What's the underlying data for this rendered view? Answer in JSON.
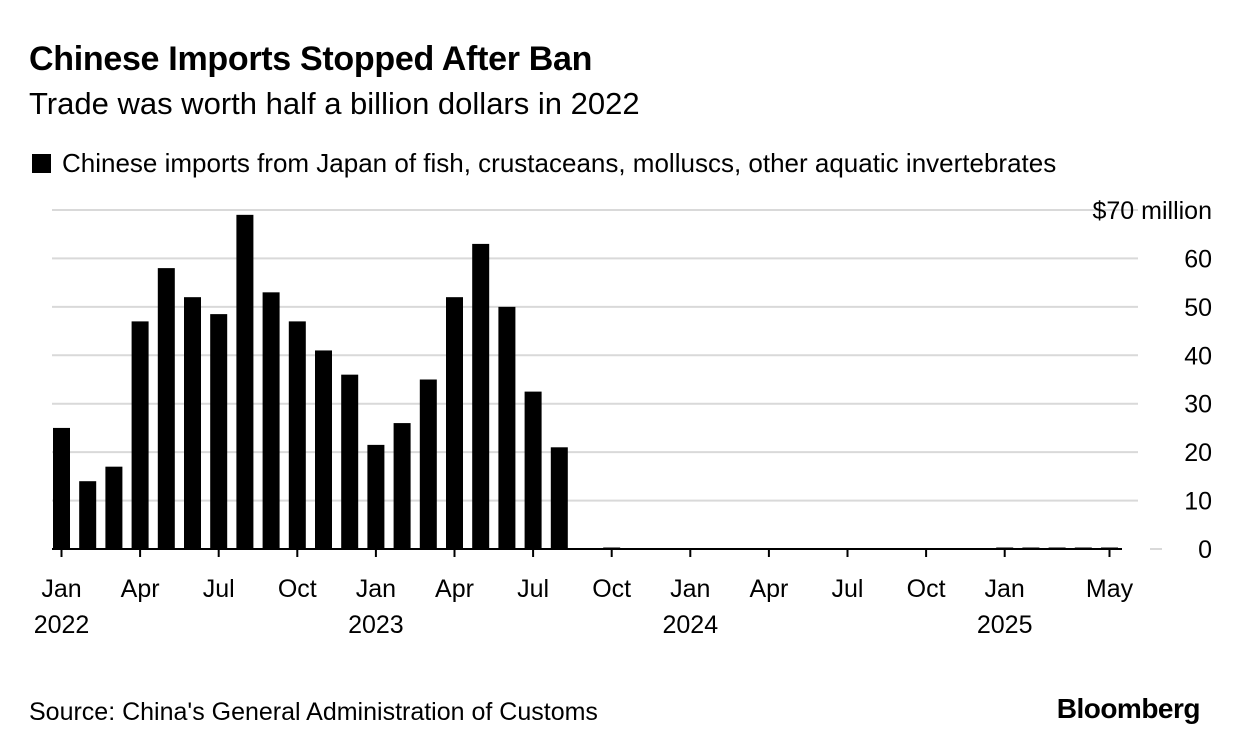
{
  "header": {
    "title": "Chinese Imports Stopped After Ban",
    "subtitle": "Trade was worth half a billion dollars in 2022"
  },
  "legend": {
    "label": "Chinese imports from Japan of fish, crustaceans, molluscs, other aquatic invertebrates"
  },
  "footer": {
    "source": "Source: China's General Administration of Customs",
    "brand": "Bloomberg"
  },
  "colors": {
    "bar": "#000000",
    "grid": "#d9d9d9",
    "text": "#000000",
    "background": "#ffffff"
  },
  "chart_data": {
    "type": "bar",
    "title": "Chinese Imports Stopped After Ban",
    "subtitle": "Trade was worth half a billion dollars in 2022",
    "xlabel": "",
    "ylabel": "$ million",
    "ylim": [
      0,
      70
    ],
    "grid": true,
    "y_axis_position": "right",
    "yticks": [
      0,
      10,
      20,
      30,
      40,
      50,
      60,
      70
    ],
    "ytick_labels": [
      "0",
      "10",
      "20",
      "30",
      "40",
      "50",
      "60",
      "$70 million"
    ],
    "categories": [
      "2022-01",
      "2022-02",
      "2022-03",
      "2022-04",
      "2022-05",
      "2022-06",
      "2022-07",
      "2022-08",
      "2022-09",
      "2022-10",
      "2022-11",
      "2022-12",
      "2023-01",
      "2023-02",
      "2023-03",
      "2023-04",
      "2023-05",
      "2023-06",
      "2023-07",
      "2023-08",
      "2023-09",
      "2023-10",
      "2023-11",
      "2023-12",
      "2024-01",
      "2024-02",
      "2024-03",
      "2024-04",
      "2024-05",
      "2024-06",
      "2024-07",
      "2024-08",
      "2024-09",
      "2024-10",
      "2024-11",
      "2024-12",
      "2025-01",
      "2025-02",
      "2025-03",
      "2025-04",
      "2025-05"
    ],
    "series": [
      {
        "name": "Chinese imports from Japan of fish, crustaceans, molluscs, other aquatic invertebrates",
        "values": [
          25,
          14,
          17,
          47,
          58,
          52,
          48.5,
          69,
          53,
          47,
          41,
          36,
          21.5,
          26,
          35,
          52,
          63,
          50,
          32.5,
          21,
          0,
          0.2,
          0,
          0,
          0,
          0,
          0,
          0,
          0,
          0,
          0,
          0,
          0,
          0,
          0,
          0,
          0.1,
          0.1,
          0.1,
          0.1,
          0.1
        ]
      }
    ],
    "x_tick_labels": [
      {
        "month": "Jan",
        "year": "2022"
      },
      {
        "month": "Apr",
        "year": ""
      },
      {
        "month": "Jul",
        "year": ""
      },
      {
        "month": "Oct",
        "year": ""
      },
      {
        "month": "Jan",
        "year": "2023"
      },
      {
        "month": "Apr",
        "year": ""
      },
      {
        "month": "Jul",
        "year": ""
      },
      {
        "month": "Oct",
        "year": ""
      },
      {
        "month": "Jan",
        "year": "2024"
      },
      {
        "month": "Apr",
        "year": ""
      },
      {
        "month": "Jul",
        "year": ""
      },
      {
        "month": "Oct",
        "year": ""
      },
      {
        "month": "Jan",
        "year": "2025"
      },
      {
        "month": "May",
        "year": ""
      }
    ],
    "x_tick_category_index": [
      0,
      3,
      6,
      9,
      12,
      15,
      18,
      21,
      24,
      27,
      30,
      33,
      36,
      40
    ]
  }
}
